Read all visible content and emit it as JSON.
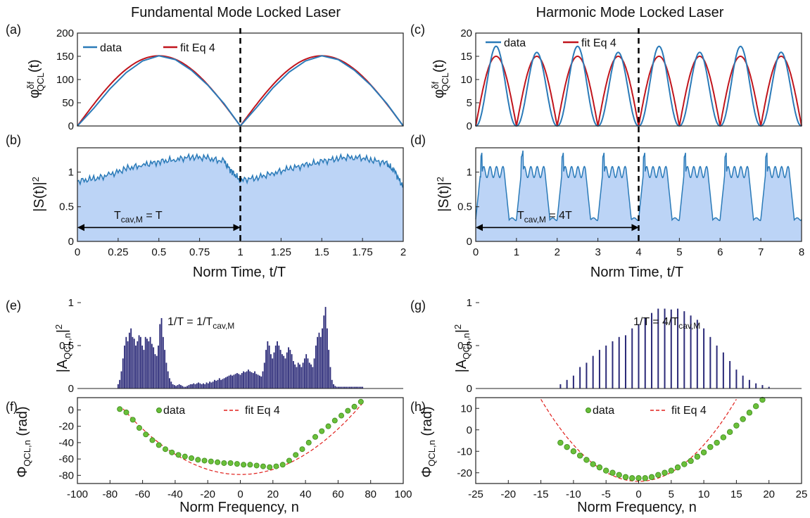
{
  "titles": {
    "left": "Fundamental Mode Locked Laser",
    "right": "Harmonic Mode Locked Laser"
  },
  "panel_letters": {
    "a": "(a)",
    "b": "(b)",
    "c": "(c)",
    "d": "(d)",
    "e": "(e)",
    "f": "(f)",
    "g": "(g)",
    "h": "(h)"
  },
  "labels": {
    "phi_base": "φ",
    "phi_sup": "δf",
    "phi_sub": "QCL",
    "phi_arg": "(t)",
    "S_main": "|S(t)|",
    "S_sup": "2",
    "norm_time": "Norm Time, t/T",
    "A_main": "|A",
    "A_sub": "QCL,n",
    "A_end": "|",
    "A_sup": "2",
    "Phi_main": "Φ",
    "Phi_sub": "QCL,n",
    "Phi_end": " (rad)",
    "norm_freq": "Norm Frequency, n"
  },
  "legend": {
    "data": "data",
    "fit": "fit Eq 4"
  },
  "annotations": {
    "b_T_main": "T",
    "b_T_sub": "cav,M",
    "b_T_end": " = T",
    "d_T_main": "T",
    "d_T_sub": "cav,M",
    "d_T_end": " = 4T",
    "e_freq_main": "1/T = 1/T",
    "e_freq_sub": "cav,M",
    "g_freq_main": "1/T = 4/T",
    "g_freq_sub": "cav,M"
  },
  "colors": {
    "data_line": "#2a7ab8",
    "fit_line": "#c0141c",
    "fill": "#bcd4f6",
    "bars": "#2b2a78",
    "dots": "#6abf3a",
    "dot_edge": "#3d8a1c",
    "fit_dashed": "#e0201c",
    "dashed_divider": "#000000"
  },
  "chart_data": [
    {
      "panel": "a",
      "type": "line",
      "xlim": [
        0,
        2
      ],
      "ylim": [
        0,
        200
      ],
      "yticks": [
        0,
        50,
        100,
        150,
        200
      ],
      "ylabel": "φδfQCL(t)",
      "series": [
        {
          "name": "data",
          "x": [
            0,
            0.1,
            0.2,
            0.3,
            0.4,
            0.5,
            0.6,
            0.7,
            0.8,
            0.9,
            1.0,
            1.1,
            1.2,
            1.3,
            1.4,
            1.5,
            1.6,
            1.7,
            1.8,
            1.9,
            2.0
          ],
          "y": [
            0,
            38,
            80,
            115,
            140,
            151,
            143,
            120,
            88,
            48,
            0,
            40,
            82,
            116,
            140,
            151,
            143,
            120,
            88,
            48,
            0
          ]
        },
        {
          "name": "fit Eq 4",
          "x": [
            0,
            0.1,
            0.2,
            0.3,
            0.4,
            0.5,
            0.6,
            0.7,
            0.8,
            0.9,
            1.0,
            1.1,
            1.2,
            1.3,
            1.4,
            1.5,
            1.6,
            1.7,
            1.8,
            1.9,
            2.0
          ],
          "y": [
            0,
            54,
            97,
            127,
            145,
            151,
            145,
            127,
            97,
            54,
            0,
            54,
            97,
            127,
            145,
            151,
            145,
            127,
            97,
            54,
            0
          ]
        }
      ],
      "divider_x": 1
    },
    {
      "panel": "b",
      "type": "area",
      "xlim": [
        0,
        2
      ],
      "ylim": [
        0,
        1.35
      ],
      "xticks": [
        0,
        0.25,
        0.5,
        0.75,
        1,
        1.25,
        1.5,
        1.75,
        2
      ],
      "xticklabels": [
        "0",
        "0.25",
        "0.5",
        "0.75",
        "1",
        "1.25",
        "1.5",
        "1.75",
        "2"
      ],
      "yticks": [
        0,
        0.5,
        1
      ],
      "yticklabels": [
        "0",
        "0.5",
        "1"
      ],
      "xlabel": "Norm Time, t/T",
      "ylabel": "|S(t)|²",
      "x": [
        0,
        0.1,
        0.2,
        0.3,
        0.4,
        0.5,
        0.6,
        0.7,
        0.8,
        0.9,
        0.95,
        1.0,
        1.1,
        1.2,
        1.3,
        1.4,
        1.5,
        1.6,
        1.7,
        1.8,
        1.9,
        1.95,
        2.0
      ],
      "y": [
        0.87,
        0.9,
        0.96,
        1.05,
        1.1,
        1.15,
        1.18,
        1.22,
        1.2,
        1.15,
        1.0,
        0.88,
        0.92,
        0.98,
        1.05,
        1.1,
        1.15,
        1.2,
        1.22,
        1.18,
        1.12,
        1.0,
        0.78
      ],
      "arrow": {
        "from": 0,
        "to": 1,
        "y": 0.2
      },
      "divider_x": 1
    },
    {
      "panel": "c",
      "type": "line",
      "xlim": [
        0,
        8
      ],
      "ylim": [
        0,
        20
      ],
      "yticks": [
        0,
        5,
        10,
        15,
        20
      ],
      "ylabel": "φδfQCL(t)",
      "period": 1,
      "data_peak": 16.5,
      "fit_peak": 15,
      "series": [
        {
          "name": "data",
          "y": []
        },
        {
          "name": "fit Eq 4",
          "y": []
        }
      ],
      "divider_x": 4
    },
    {
      "panel": "d",
      "type": "area",
      "xlim": [
        0,
        8
      ],
      "ylim": [
        0,
        1.35
      ],
      "xticks": [
        0,
        1,
        2,
        3,
        4,
        5,
        6,
        7,
        8
      ],
      "xticklabels": [
        "0",
        "1",
        "2",
        "3",
        "4",
        "5",
        "6",
        "7",
        "8"
      ],
      "yticks": [
        0,
        0.5,
        1
      ],
      "yticklabels": [
        "0",
        "0.5",
        "1"
      ],
      "xlabel": "Norm Time, t/T",
      "ylabel": "|S(t)|²",
      "period": 1,
      "high": 1.0,
      "low": 0.32,
      "spike": 1.3,
      "arrow": {
        "from": 0,
        "to": 4,
        "y": 0.2
      },
      "divider_x": 4
    },
    {
      "panel": "e",
      "type": "bar",
      "xlim": [
        -100,
        100
      ],
      "ylim": [
        0,
        1
      ],
      "yticks": [
        0,
        0.5,
        1
      ],
      "yticklabels": [
        "0",
        "0.5",
        "1"
      ],
      "ylabel": "|AQCL,n|²",
      "n_from": -75,
      "n_to": 75,
      "values": [
        0.05,
        0.1,
        0.2,
        0.35,
        0.5,
        0.6,
        0.55,
        0.65,
        0.7,
        0.6,
        0.58,
        0.5,
        0.55,
        0.62,
        0.6,
        0.5,
        0.45,
        0.6,
        0.58,
        0.55,
        0.6,
        0.52,
        0.48,
        0.4,
        0.38,
        0.5,
        0.75,
        0.82,
        0.6,
        0.45,
        0.3,
        0.2,
        0.12,
        0.08,
        0.05,
        0.04,
        0.03,
        0.04,
        0.05,
        0.04,
        0.03,
        0.02,
        0.02,
        0.03,
        0.04,
        0.05,
        0.05,
        0.06,
        0.05,
        0.06,
        0.07,
        0.06,
        0.05,
        0.06,
        0.05,
        0.07,
        0.06,
        0.08,
        0.07,
        0.08,
        0.1,
        0.09,
        0.1,
        0.12,
        0.1,
        0.11,
        0.12,
        0.13,
        0.14,
        0.15,
        0.16,
        0.15,
        0.16,
        0.17,
        0.18,
        0.17,
        0.16,
        0.18,
        0.2,
        0.19,
        0.2,
        0.22,
        0.2,
        0.19,
        0.18,
        0.2,
        0.17,
        0.16,
        0.15,
        0.14,
        0.2,
        0.3,
        0.45,
        0.55,
        0.5,
        0.4,
        0.35,
        0.42,
        0.5,
        0.55,
        0.5,
        0.45,
        0.4,
        0.38,
        0.35,
        0.42,
        0.48,
        0.45,
        0.4,
        0.32,
        0.28,
        0.25,
        0.3,
        0.28,
        0.25,
        0.3,
        0.35,
        0.4,
        0.35,
        0.3,
        0.28,
        0.25,
        0.35,
        0.5,
        0.6,
        0.65,
        0.6,
        0.7,
        0.85,
        0.95,
        0.7,
        0.45,
        0.25,
        0.1,
        0.05,
        0.03,
        0.02,
        0.02,
        0.02,
        0.02,
        0.02,
        0.02,
        0.02,
        0.02,
        0.02,
        0.02,
        0.02,
        0.02,
        0.02,
        0.02,
        0.02,
        0.02,
        0.02
      ]
    },
    {
      "panel": "f",
      "type": "scatter",
      "xlim": [
        -100,
        100
      ],
      "ylim": [
        -90,
        15
      ],
      "xticks": [
        -100,
        -80,
        -60,
        -40,
        -20,
        0,
        20,
        40,
        60,
        80,
        100
      ],
      "xticklabels": [
        "-100",
        "-80",
        "-60",
        "-40",
        "-20",
        "0",
        "20",
        "40",
        "60",
        "80",
        "100"
      ],
      "yticks": [
        -80,
        -60,
        -40,
        -20,
        0
      ],
      "yticklabels": [
        "-80",
        "-60",
        "-40",
        "-20",
        "0"
      ],
      "xlabel": "Norm Frequency, n",
      "ylabel": "ΦQCL,n (rad)",
      "data_x": [
        -74,
        -70,
        -66,
        -62,
        -58,
        -54,
        -50,
        -46,
        -42,
        -38,
        -34,
        -30,
        -26,
        -22,
        -18,
        -14,
        -10,
        -6,
        -2,
        2,
        6,
        10,
        14,
        18,
        22,
        26,
        30,
        34,
        38,
        42,
        46,
        50,
        54,
        58,
        62,
        66,
        70,
        74
      ],
      "data_y": [
        1,
        -3,
        -12,
        -22,
        -30,
        -37,
        -43,
        -48,
        -52,
        -55,
        -57,
        -59,
        -61,
        -62,
        -63,
        -64,
        -65,
        -65,
        -66,
        -67,
        -67,
        -68,
        -69,
        -70,
        -69,
        -67,
        -62,
        -55,
        -48,
        -40,
        -33,
        -26,
        -20,
        -13,
        -7,
        -1,
        4,
        10
      ],
      "fit_coeff": {
        "a": 0.0155,
        "c": -79
      }
    },
    {
      "panel": "g",
      "type": "bar",
      "xlim": [
        -25,
        25
      ],
      "ylim": [
        0,
        1
      ],
      "yticks": [
        0,
        0.5,
        1
      ],
      "yticklabels": [
        "0",
        "0.5",
        "1"
      ],
      "ylabel": "|AQCL,n|²",
      "n": [
        -12,
        -11,
        -10,
        -9,
        -8,
        -7,
        -6,
        -5,
        -4,
        -3,
        -2,
        -1,
        0,
        1,
        2,
        3,
        4,
        5,
        6,
        7,
        8,
        9,
        10,
        11,
        12,
        13,
        14,
        15,
        16,
        17,
        18,
        19,
        20
      ],
      "values": [
        0.05,
        0.1,
        0.15,
        0.25,
        0.3,
        0.38,
        0.45,
        0.5,
        0.55,
        0.6,
        0.62,
        0.7,
        0.75,
        0.82,
        0.88,
        0.93,
        0.93,
        0.92,
        0.93,
        0.9,
        0.85,
        0.8,
        0.7,
        0.6,
        0.5,
        0.42,
        0.32,
        0.22,
        0.15,
        0.1,
        0.06,
        0.04,
        0.02
      ]
    },
    {
      "panel": "h",
      "type": "scatter",
      "xlim": [
        -25,
        25
      ],
      "ylim": [
        -25,
        15
      ],
      "xticks": [
        -25,
        -20,
        -15,
        -10,
        -5,
        0,
        5,
        10,
        15,
        20,
        25
      ],
      "xticklabels": [
        "-25",
        "-20",
        "-15",
        "-10",
        "-5",
        "0",
        "5",
        "10",
        "15",
        "20",
        "25"
      ],
      "yticks": [
        -20,
        -10,
        0,
        10
      ],
      "yticklabels": [
        "-20",
        "-10",
        "0",
        "10"
      ],
      "xlabel": "Norm Frequency, n",
      "ylabel": "ΦQCL,n (rad)",
      "data_x": [
        -12,
        -11,
        -10,
        -9,
        -8,
        -7,
        -6,
        -5,
        -4,
        -3,
        -2,
        -1,
        0,
        1,
        2,
        3,
        4,
        5,
        6,
        7,
        8,
        9,
        10,
        11,
        12,
        13,
        14,
        15,
        16,
        17,
        18,
        19
      ],
      "data_y": [
        -6,
        -8,
        -10,
        -12,
        -14,
        -16,
        -17.5,
        -19,
        -20,
        -21,
        -22,
        -22.5,
        -22.5,
        -22.5,
        -22,
        -21,
        -20,
        -19,
        -17.5,
        -16,
        -14.5,
        -12.5,
        -10.5,
        -8,
        -6,
        -3.5,
        -1,
        2,
        5,
        8,
        11,
        14
      ],
      "fit_coeff": {
        "a": 0.17,
        "c": -24
      }
    }
  ]
}
